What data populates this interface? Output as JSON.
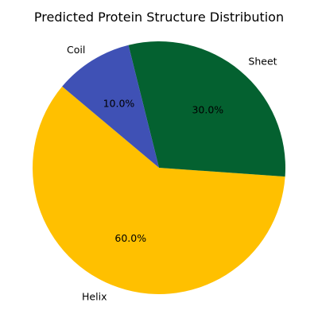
{
  "chart_data": {
    "type": "pie",
    "title": "Predicted Protein Structure Distribution",
    "start_angle_deg": 140,
    "direction": "counterclockwise",
    "slices": [
      {
        "label": "Helix",
        "value": 60,
        "percent_label": "60.0%",
        "color": "#FFC000"
      },
      {
        "label": "Sheet",
        "value": 30,
        "percent_label": "30.0%",
        "color": "#046130"
      },
      {
        "label": "Coil",
        "value": 10,
        "percent_label": "10.0%",
        "color": "#3F51B5"
      }
    ]
  }
}
